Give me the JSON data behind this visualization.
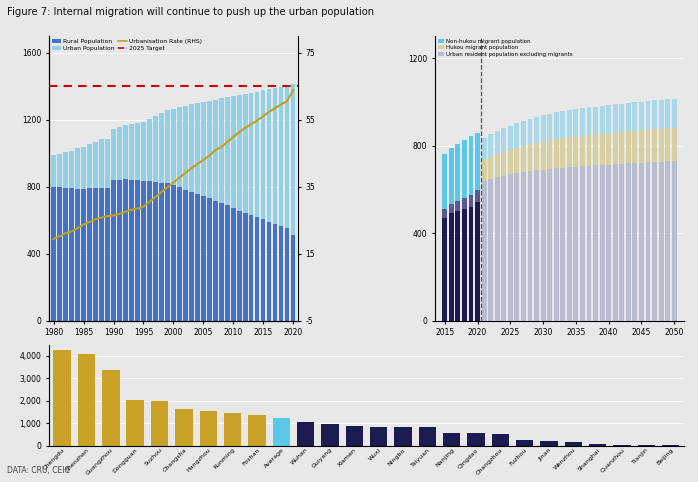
{
  "title": "Figure 7: Internal migration will continue to push up the urban population",
  "source": "DATA: CRU, CEIC",
  "left_chart": {
    "years": [
      1980,
      1981,
      1982,
      1983,
      1984,
      1985,
      1986,
      1987,
      1988,
      1989,
      1990,
      1991,
      1992,
      1993,
      1994,
      1995,
      1996,
      1997,
      1998,
      1999,
      2000,
      2001,
      2002,
      2003,
      2004,
      2005,
      2006,
      2007,
      2008,
      2009,
      2010,
      2011,
      2012,
      2013,
      2014,
      2015,
      2016,
      2017,
      2018,
      2019,
      2020
    ],
    "rural": [
      796,
      797,
      793,
      790,
      789,
      789,
      792,
      793,
      793,
      790,
      841,
      843,
      845,
      843,
      840,
      835,
      832,
      830,
      825,
      820,
      808,
      796,
      782,
      769,
      757,
      745,
      731,
      714,
      704,
      689,
      671,
      657,
      642,
      630,
      619,
      608,
      590,
      576,
      564,
      552,
      510
    ],
    "urban": [
      191,
      201,
      215,
      222,
      240,
      251,
      263,
      276,
      290,
      295,
      302,
      313,
      322,
      332,
      341,
      352,
      373,
      394,
      416,
      437,
      459,
      481,
      502,
      524,
      543,
      562,
      583,
      607,
      624,
      645,
      670,
      691,
      712,
      731,
      748,
      771,
      793,
      814,
      831,
      848,
      902
    ],
    "urbanisation_rate": [
      19.4,
      20.2,
      21.1,
      21.6,
      22.6,
      23.7,
      24.5,
      25.3,
      25.8,
      26.2,
      26.4,
      26.9,
      27.5,
      28.1,
      28.5,
      29.0,
      30.5,
      31.9,
      33.4,
      34.8,
      36.2,
      37.7,
      39.1,
      40.5,
      41.8,
      43.0,
      44.3,
      45.9,
      46.9,
      48.3,
      49.9,
      51.3,
      52.6,
      53.7,
      54.8,
      56.1,
      57.4,
      58.5,
      59.6,
      60.6,
      63.9
    ],
    "target_rate": 65,
    "ylim_left": [
      0,
      1700
    ],
    "ylim_right": [
      -5,
      80
    ],
    "yticks_left": [
      0,
      400,
      800,
      1200,
      1600
    ],
    "yticks_right": [
      -5,
      15,
      35,
      55,
      75
    ],
    "rural_color": "#4472C4",
    "urban_color": "#92D0E8",
    "urb_rate_color": "#BFA020",
    "target_color": "#CC0000"
  },
  "right_chart": {
    "years_hist": [
      2015,
      2016,
      2017,
      2018,
      2019,
      2020
    ],
    "years_proj": [
      2021,
      2022,
      2023,
      2024,
      2025,
      2026,
      2027,
      2028,
      2029,
      2030,
      2031,
      2032,
      2033,
      2034,
      2035,
      2036,
      2037,
      2038,
      2039,
      2040,
      2041,
      2042,
      2043,
      2044,
      2045,
      2046,
      2047,
      2048,
      2049,
      2050
    ],
    "hist_resident": [
      470,
      490,
      500,
      510,
      520,
      540
    ],
    "hist_hukou": [
      40,
      43,
      47,
      50,
      53,
      57
    ],
    "hist_nonhukou": [
      250,
      255,
      260,
      265,
      270,
      260
    ],
    "proj_resident": [
      640,
      648,
      655,
      662,
      668,
      673,
      677,
      682,
      686,
      690,
      693,
      696,
      698,
      700,
      703,
      705,
      707,
      709,
      711,
      713,
      715,
      717,
      718,
      720,
      722,
      723,
      725,
      726,
      728,
      730
    ],
    "proj_hukou": [
      95,
      100,
      105,
      108,
      112,
      116,
      120,
      123,
      126,
      128,
      131,
      133,
      135,
      137,
      138,
      140,
      141,
      142,
      143,
      144,
      145,
      146,
      147,
      147,
      148,
      149,
      149,
      150,
      150,
      151
    ],
    "proj_nonhukou": [
      100,
      103,
      106,
      108,
      110,
      112,
      114,
      116,
      118,
      120,
      121,
      122,
      123,
      124,
      125,
      126,
      127,
      127,
      128,
      128,
      129,
      129,
      130,
      130,
      131,
      131,
      132,
      132,
      133,
      133
    ],
    "resident_color_hist": "#1B1B50",
    "hukou_color_hist": "#5A5A90",
    "nonhukou_color_hist": "#5BC8EA",
    "resident_color_proj": "#B8BED0",
    "hukou_color_proj": "#D8D0A0",
    "nonhukou_color_proj": "#A8D8EA",
    "ylim": [
      0,
      1300
    ],
    "yticks": [
      0,
      400,
      800,
      1200
    ]
  },
  "bottom_chart": {
    "cities": [
      "Chengdu",
      "Shenzhen",
      "Guangzhou",
      "Dongguan",
      "Suzhou",
      "Changsha",
      "Hangzhou",
      "Kunming",
      "Foshan",
      "Average",
      "Wuhan",
      "Guiyang",
      "Xiamen",
      "Wuxi",
      "Ningbo",
      "Taiyuan",
      "Nanjing",
      "Qingdao",
      "Changzhou",
      "Fuzhou",
      "Jinan",
      "Wenzhou",
      "Shanghai",
      "Quanzhou",
      "Tianjin",
      "Beijing"
    ],
    "values": [
      4280,
      4090,
      3380,
      2020,
      2010,
      1640,
      1560,
      1470,
      1350,
      1220,
      1080,
      960,
      870,
      860,
      840,
      820,
      590,
      560,
      510,
      250,
      220,
      150,
      80,
      40,
      20,
      60
    ],
    "colors": [
      "#C9A227",
      "#C9A227",
      "#C9A227",
      "#C9A227",
      "#C9A227",
      "#C9A227",
      "#C9A227",
      "#C9A227",
      "#C9A227",
      "#5BC8EA",
      "#1B1B50",
      "#1B1B50",
      "#1B1B50",
      "#1B1B50",
      "#1B1B50",
      "#1B1B50",
      "#1B1B50",
      "#1B1B50",
      "#1B1B50",
      "#1B1B50",
      "#1B1B50",
      "#1B1B50",
      "#1B1B50",
      "#1B1B50",
      "#1B1B50",
      "#1B1B50"
    ],
    "ylim": [
      0,
      4500
    ],
    "yticks": [
      0,
      1000,
      2000,
      3000,
      4000
    ]
  },
  "bg_color": "#E8E8E8",
  "panel_bg": "#E8E8E8"
}
